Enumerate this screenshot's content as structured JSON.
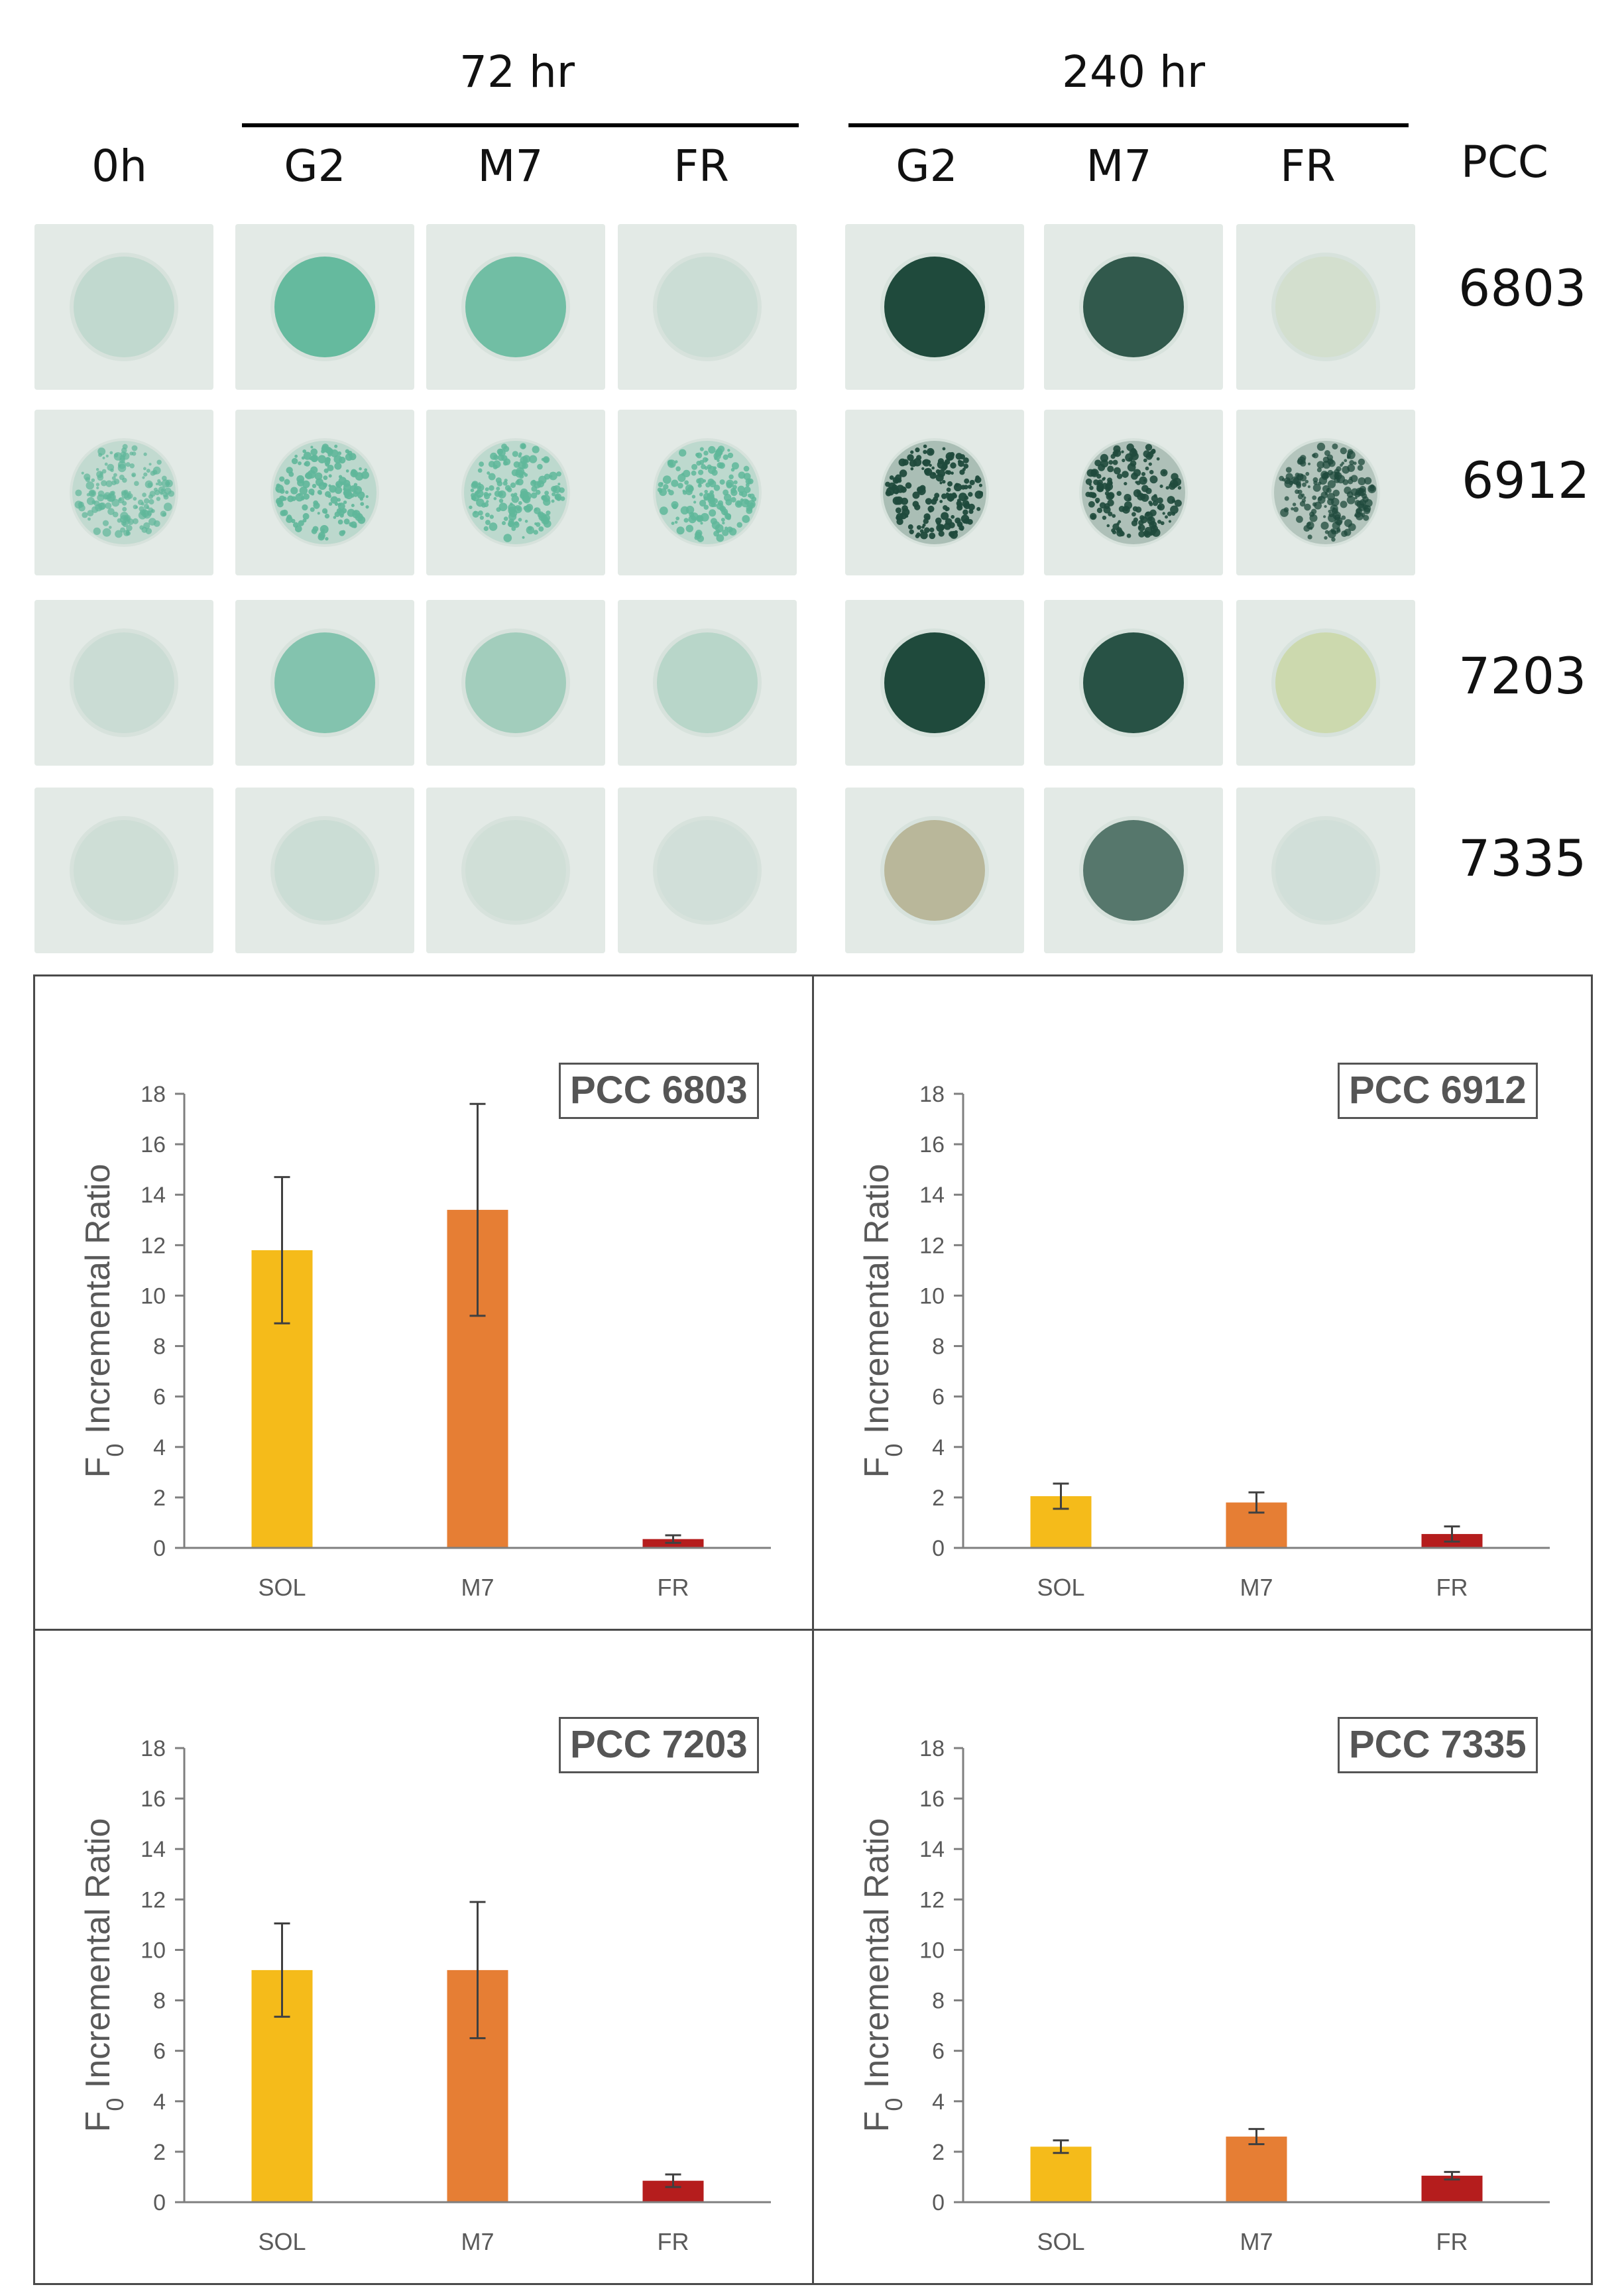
{
  "header": {
    "time_72": "72 hr",
    "time_240": "240 hr",
    "columns": [
      "0h",
      "G2",
      "M7",
      "FR",
      "G2",
      "M7",
      "FR"
    ],
    "pcc_label": "PCC"
  },
  "plates": {
    "strains": [
      "6803",
      "6912",
      "7203",
      "7335"
    ],
    "colors": {
      "background": "#dde6e1",
      "light_teal": "#5fb79a",
      "mid_teal": "#7fbfa6",
      "dark_green": "#1f4a3c",
      "khaki": "#b9b79a",
      "yellow_green": "#c9d7a2"
    }
  },
  "chart_data": [
    {
      "type": "bar",
      "title": "PCC 6803",
      "ylabel": "F0 Incremental Ratio",
      "categories": [
        "SOL",
        "M7",
        "FR"
      ],
      "values": [
        11.8,
        13.4,
        0.35
      ],
      "errors": [
        2.9,
        4.2,
        0.15
      ],
      "ylim": [
        0,
        18
      ],
      "yticks": [
        0,
        2,
        4,
        6,
        8,
        10,
        12,
        14,
        16,
        18
      ],
      "bar_colors": [
        "#f5bb1a",
        "#e67e34",
        "#b51d1d"
      ]
    },
    {
      "type": "bar",
      "title": "PCC 6912",
      "ylabel": "F0 Incremental Ratio",
      "categories": [
        "SOL",
        "M7",
        "FR"
      ],
      "values": [
        2.05,
        1.8,
        0.55
      ],
      "errors": [
        0.5,
        0.4,
        0.3
      ],
      "ylim": [
        0,
        18
      ],
      "yticks": [
        0,
        2,
        4,
        6,
        8,
        10,
        12,
        14,
        16,
        18
      ],
      "bar_colors": [
        "#f5bb1a",
        "#e67e34",
        "#b51d1d"
      ]
    },
    {
      "type": "bar",
      "title": "PCC 7203",
      "ylabel": "F0 Incremental Ratio",
      "categories": [
        "SOL",
        "M7",
        "FR"
      ],
      "values": [
        9.2,
        9.2,
        0.85
      ],
      "errors": [
        1.85,
        2.7,
        0.25
      ],
      "ylim": [
        0,
        18
      ],
      "yticks": [
        0,
        2,
        4,
        6,
        8,
        10,
        12,
        14,
        16,
        18
      ],
      "bar_colors": [
        "#f5bb1a",
        "#e67e34",
        "#b51d1d"
      ]
    },
    {
      "type": "bar",
      "title": "PCC 7335",
      "ylabel": "F0 Incremental Ratio",
      "categories": [
        "SOL",
        "M7",
        "FR"
      ],
      "values": [
        2.2,
        2.6,
        1.05
      ],
      "errors": [
        0.25,
        0.3,
        0.15
      ],
      "ylim": [
        0,
        18
      ],
      "yticks": [
        0,
        2,
        4,
        6,
        8,
        10,
        12,
        14,
        16,
        18
      ],
      "bar_colors": [
        "#f5bb1a",
        "#e67e34",
        "#b51d1d"
      ]
    }
  ]
}
